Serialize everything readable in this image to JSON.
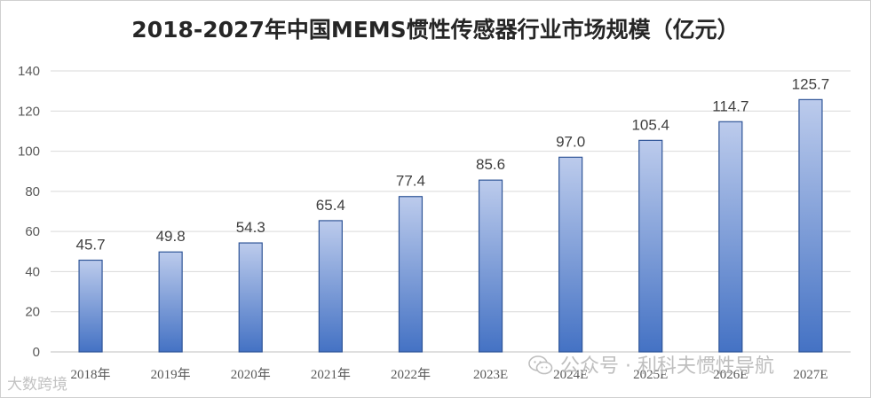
{
  "chart_data": {
    "type": "bar",
    "title": "2018-2027年中国MEMS惯性传感器行业市场规模（亿元）",
    "xlabel": "",
    "ylabel": "",
    "categories": [
      "2018年",
      "2019年",
      "2020年",
      "2021年",
      "2022年",
      "2023E",
      "2024E",
      "2025E",
      "2026E",
      "2027E"
    ],
    "values": [
      45.7,
      49.8,
      54.3,
      65.4,
      77.4,
      85.6,
      97.0,
      105.4,
      114.7,
      125.7
    ],
    "value_labels": [
      "45.7",
      "49.8",
      "54.3",
      "65.4",
      "77.4",
      "85.6",
      "97.0",
      "105.4",
      "114.7",
      "125.7"
    ],
    "ylim": [
      0,
      140
    ],
    "yticks": [
      0,
      20,
      40,
      60,
      80,
      100,
      120,
      140
    ],
    "grid": true,
    "legend": "none",
    "colors": {
      "bar_top": "#bccbec",
      "bar_bottom": "#4472c4",
      "bar_border": "#2f5597",
      "grid": "#d9d9d9"
    }
  },
  "watermarks": {
    "left": "大数跨境",
    "right": "公众号 · 利科夫惯性导航",
    "right_icon": "wechat-icon"
  }
}
